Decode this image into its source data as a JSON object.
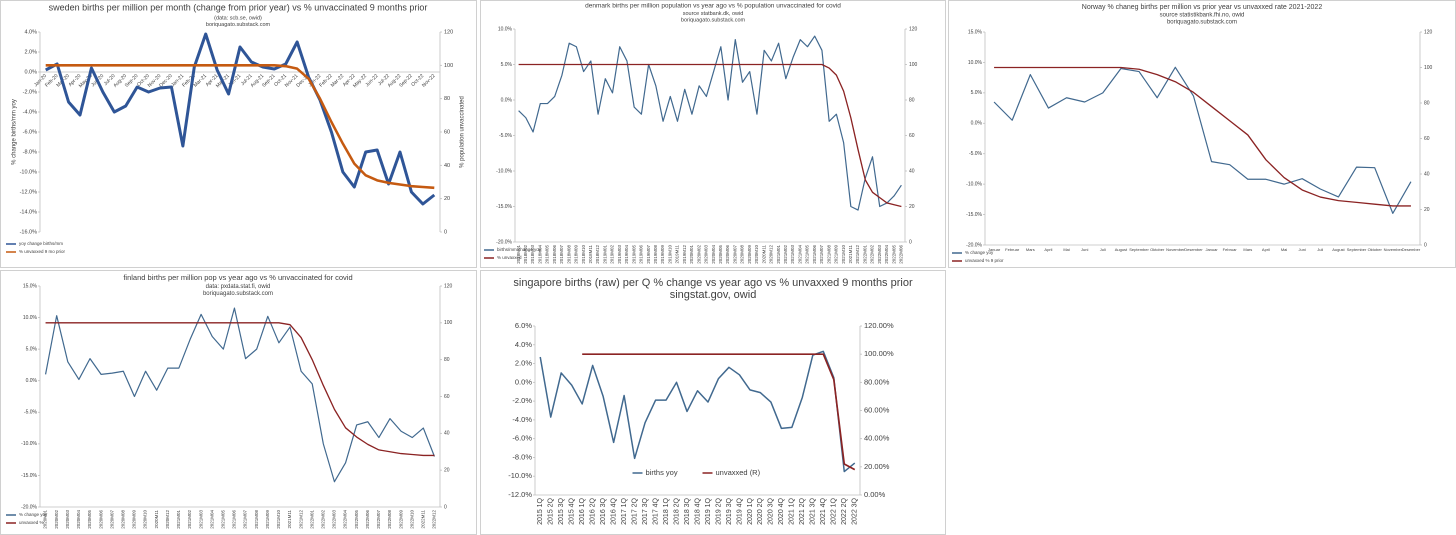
{
  "chart_data": [
    {
      "type": "line",
      "title": "sweden births per million per month (change from prior year) vs % unvaccinated 9 months prior",
      "subtitle": "(data: scb.se, owid)",
      "credit": "boriquagato.substack.com",
      "y_label": "% change births/mm yoy",
      "y2_label": "% population unvaccinated",
      "categories": [
        "Jan-20",
        "Feb-20",
        "Mar-20",
        "Apr-20",
        "May-20",
        "Jun-20",
        "Jul-20",
        "Aug-20",
        "Sep-20",
        "Oct-20",
        "Nov-20",
        "Dec-20",
        "Jan-21",
        "Feb-21",
        "Mar-21",
        "Apr-21",
        "May-21",
        "Jun-21",
        "Jul-21",
        "Aug-21",
        "Sep-21",
        "Oct-21",
        "Nov-21",
        "Dec-21",
        "Jan-22",
        "Feb-22",
        "Mar-22",
        "Apr-22",
        "May-22",
        "Jun-22",
        "Jul-22",
        "Aug-22",
        "Sep-22",
        "Oct-22",
        "Nov-22"
      ],
      "series": [
        {
          "name": "yoy change births/mm",
          "color": "#2f5597",
          "values": [
            0.2,
            0.8,
            -3.0,
            -4.3,
            0.4,
            -2.0,
            -4.0,
            -3.4,
            -1.5,
            -2.0,
            -1.6,
            -1.5,
            -7.4,
            0.5,
            3.8,
            0.2,
            -2.2,
            2.5,
            1.0,
            0.5,
            0.3,
            0.8,
            3.0,
            -0.5,
            -2.8,
            -6.0,
            -10.0,
            -11.5,
            -8.0,
            -7.8,
            -11.2,
            -8.0,
            -12.0,
            -13.2,
            -12.3
          ]
        },
        {
          "name": "% unvaxxed 9 mo prior",
          "color": "#c55a11",
          "axis": "y2",
          "values": [
            100,
            100,
            100,
            100,
            100,
            100,
            100,
            100,
            100,
            100,
            100,
            100,
            100,
            100,
            100,
            100,
            100,
            100,
            100,
            100,
            100,
            99.5,
            98,
            92,
            80,
            66,
            53,
            41,
            34,
            31,
            29.5,
            28.5,
            27.5,
            27,
            26.5
          ]
        }
      ],
      "ylim": [
        -16,
        4
      ],
      "yticks": [
        {
          "value": 4,
          "label": "4.0%"
        },
        {
          "value": 2,
          "label": "2.0%"
        },
        {
          "value": 0,
          "label": "0.0%"
        },
        {
          "value": -2,
          "label": "-2.0%"
        },
        {
          "value": -4,
          "label": "-4.0%"
        },
        {
          "value": -6,
          "label": "-6.0%"
        },
        {
          "value": -8,
          "label": "-8.0%"
        },
        {
          "value": -10,
          "label": "-10.0%"
        },
        {
          "value": -12,
          "label": "-12.0%"
        },
        {
          "value": -14,
          "label": "-14.0%"
        },
        {
          "value": -16,
          "label": "-16.0%"
        }
      ],
      "y2lim": [
        0,
        120
      ],
      "y2ticks": [
        0,
        20,
        40,
        60,
        80,
        100,
        120
      ]
    },
    {
      "type": "line",
      "title": "denmark births per million population vs year ago vs % population unvaccinated for covid",
      "subtitle": "source statbank.dk, owid",
      "credit": "boriquagato.substack.com",
      "categories": [
        "2018M01",
        "2018M02",
        "2018M03",
        "2018M04",
        "2018M05",
        "2018M06",
        "2018M07",
        "2018M08",
        "2018M09",
        "2018M10",
        "2018M11",
        "2018M12",
        "2019M01",
        "2019M02",
        "2019M03",
        "2019M04",
        "2019M05",
        "2019M06",
        "2019M07",
        "2019M08",
        "2019M09",
        "2019M10",
        "2019M11",
        "2019M12",
        "2020M01",
        "2020M02",
        "2020M03",
        "2020M04",
        "2020M05",
        "2020M06",
        "2020M07",
        "2020M08",
        "2020M09",
        "2020M10",
        "2020M11",
        "2020M12",
        "2021M01",
        "2021M02",
        "2021M03",
        "2021M04",
        "2021M05",
        "2021M06",
        "2021M07",
        "2021M08",
        "2021M09",
        "2021M10",
        "2021M11",
        "2021M12",
        "2022M01",
        "2022M02",
        "2022M03",
        "2022M04",
        "2022M05",
        "2022M06"
      ],
      "series": [
        {
          "name": "births/mm change yoy",
          "color": "#41698f",
          "values": [
            -1.5,
            -2.5,
            -4.5,
            -0.5,
            -0.5,
            0.5,
            3.5,
            8.0,
            7.5,
            4.0,
            5.5,
            -2.0,
            3.0,
            1.0,
            7.5,
            5.5,
            -1.0,
            -2.0,
            5.0,
            2.0,
            -3.0,
            0.5,
            -3.0,
            1.5,
            -2.0,
            2.0,
            0.5,
            4.0,
            7.5,
            0.0,
            8.5,
            2.5,
            4.0,
            -2.0,
            7.0,
            5.5,
            8.0,
            3.0,
            6.0,
            8.5,
            7.5,
            9.0,
            7.0,
            -3.0,
            -2.0,
            -6.0,
            -15.0,
            -15.5,
            -11.0,
            -8.0,
            -15.0,
            -14.5,
            -13.5,
            -12.0
          ]
        },
        {
          "name": "% unvaxxed",
          "color": "#8b2323",
          "axis": "y2",
          "values": [
            100,
            100,
            100,
            100,
            100,
            100,
            100,
            100,
            100,
            100,
            100,
            100,
            100,
            100,
            100,
            100,
            100,
            100,
            100,
            100,
            100,
            100,
            100,
            100,
            100,
            100,
            100,
            100,
            100,
            100,
            100,
            100,
            100,
            100,
            100,
            100,
            100,
            100,
            100,
            100,
            100,
            100,
            100,
            98,
            94,
            85,
            70,
            52,
            35,
            28,
            25,
            22,
            21,
            20
          ]
        }
      ],
      "ylim": [
        -20,
        10
      ],
      "yticks": [
        {
          "value": 10,
          "label": "10.0%"
        },
        {
          "value": 5,
          "label": "5.0%"
        },
        {
          "value": 0,
          "label": "0.0%"
        },
        {
          "value": -5,
          "label": "-5.0%"
        },
        {
          "value": -10,
          "label": "-10.0%"
        },
        {
          "value": -15,
          "label": "-15.0%"
        },
        {
          "value": -20,
          "label": "-20.0%"
        }
      ],
      "y2lim": [
        0,
        120
      ],
      "y2ticks": [
        0,
        20,
        40,
        60,
        80,
        100,
        120
      ]
    },
    {
      "type": "line",
      "title": "Norway % chaneg births per million vs prior year vs unvaxxed rate 2021-2022",
      "subtitle": "source statistikbank.fhi.no, owid",
      "credit": "boriquagato.substack.com",
      "categories": [
        "Januar",
        "Februar",
        "Mars",
        "April",
        "Mai",
        "Juni",
        "Juli",
        "August",
        "September",
        "Oktober",
        "November",
        "Desember",
        "Januar",
        "Februar",
        "Mars",
        "April",
        "Mai",
        "Juni",
        "Juli",
        "August",
        "September",
        "Oktober",
        "November",
        "Desember"
      ],
      "series": [
        {
          "name": "% change yoy",
          "color": "#41698f",
          "values": [
            3.5,
            0.5,
            8.0,
            2.5,
            4.2,
            3.5,
            5.0,
            9.0,
            8.5,
            4.2,
            9.2,
            4.5,
            -6.3,
            -6.8,
            -9.2,
            -9.2,
            -10.0,
            -9.1,
            -10.8,
            -12.1,
            -7.2,
            -7.3,
            -14.8,
            -9.6
          ]
        },
        {
          "name": "unvaxxed % 9 prior",
          "color": "#8b2323",
          "axis": "y2",
          "values": [
            100,
            100,
            100,
            100,
            100,
            100,
            100,
            100,
            99,
            96,
            92,
            86,
            78,
            70,
            62,
            48,
            38,
            31,
            27,
            25,
            24,
            23,
            22,
            22
          ]
        }
      ],
      "ylim": [
        -20,
        15
      ],
      "yticks": [
        {
          "value": 15,
          "label": "15.0%"
        },
        {
          "value": 10,
          "label": "10.0%"
        },
        {
          "value": 5,
          "label": "5.0%"
        },
        {
          "value": 0,
          "label": "0.0%"
        },
        {
          "value": -5,
          "label": "-5.0%"
        },
        {
          "value": -10,
          "label": "-10.0%"
        },
        {
          "value": -15,
          "label": "-15.0%"
        },
        {
          "value": -20,
          "label": "-20.0%"
        }
      ],
      "y2lim": [
        0,
        120
      ],
      "y2ticks": [
        0,
        20,
        40,
        60,
        80,
        100,
        120
      ]
    },
    {
      "type": "line",
      "title": "finland births per million pop vs year ago vs % unvaccinated for covid",
      "subtitle": "data: pxdata.stat.fi, owid",
      "credit": "boriquagato.substack.com",
      "categories": [
        "2020M01",
        "2020M02",
        "2020M03",
        "2020M04",
        "2020M05",
        "2020M06",
        "2020M07",
        "2020M08",
        "2020M09",
        "2020M10",
        "2020M11",
        "2020M12",
        "2021M01",
        "2021M02",
        "2021M03",
        "2021M04",
        "2021M05",
        "2021M06",
        "2021M07",
        "2021M08",
        "2021M09",
        "2021M10",
        "2021M11",
        "2021M12",
        "2022M01",
        "2022M02",
        "2022M03",
        "2022M04",
        "2022M05",
        "2022M06",
        "2022M07",
        "2022M08",
        "2022M09",
        "2022M10",
        "2022M11",
        "2022M12"
      ],
      "series": [
        {
          "name": "% change yoy",
          "color": "#41698f",
          "values": [
            1.0,
            10.3,
            3.0,
            0.2,
            3.5,
            1.0,
            1.2,
            1.5,
            -2.5,
            1.5,
            -1.5,
            2.0,
            2.0,
            6.5,
            10.5,
            7.0,
            5.0,
            11.5,
            3.5,
            5.0,
            10.2,
            6.0,
            8.5,
            1.5,
            -0.5,
            -10.0,
            -16.0,
            -13.0,
            -7.0,
            -6.5,
            -9.0,
            -6.0,
            -8.0,
            -9.0,
            -7.5,
            -12.0
          ]
        },
        {
          "name": "unvaxxed %",
          "color": "#8b2323",
          "axis": "y2",
          "values": [
            100,
            100,
            100,
            100,
            100,
            100,
            100,
            100,
            100,
            100,
            100,
            100,
            100,
            100,
            100,
            100,
            100,
            100,
            100,
            100,
            100,
            100,
            99,
            92,
            80,
            66,
            53,
            43,
            38,
            34,
            31,
            30,
            29,
            28.5,
            28,
            28
          ]
        }
      ],
      "ylim": [
        -20,
        15
      ],
      "yticks": [
        {
          "value": 15,
          "label": "15.0%"
        },
        {
          "value": 10,
          "label": "10.0%"
        },
        {
          "value": 5,
          "label": "5.0%"
        },
        {
          "value": 0,
          "label": "0.0%"
        },
        {
          "value": -5,
          "label": "-5.0%"
        },
        {
          "value": -10,
          "label": "-10.0%"
        },
        {
          "value": -15,
          "label": "-15.0%"
        },
        {
          "value": -20,
          "label": "-20.0%"
        }
      ],
      "y2lim": [
        0,
        120
      ],
      "y2ticks": [
        0,
        20,
        40,
        60,
        80,
        100,
        120
      ]
    },
    {
      "type": "line",
      "title": "singapore births (raw) per Q % change vs year ago vs % unvaxxed 9 months prior",
      "subtitle": "singstat.gov, owid",
      "categories": [
        "2015 1Q",
        "2015 2Q",
        "2015 3Q",
        "2015 4Q",
        "2016 1Q",
        "2016 2Q",
        "2016 3Q",
        "2016 4Q",
        "2017 1Q",
        "2017 2Q",
        "2017 3Q",
        "2017 4Q",
        "2018 1Q",
        "2018 2Q",
        "2018 3Q",
        "2018 4Q",
        "2019 1Q",
        "2019 2Q",
        "2019 3Q",
        "2019 4Q",
        "2020 1Q",
        "2020 2Q",
        "2020 3Q",
        "2020 4Q",
        "2021 1Q",
        "2021 2Q",
        "2021 3Q",
        "2021 4Q",
        "2022 1Q",
        "2022 2Q",
        "2022 3Q"
      ],
      "series": [
        {
          "name": "births yoy",
          "color": "#41698f",
          "values": [
            2.7,
            -3.7,
            1.0,
            -0.3,
            -2.3,
            1.8,
            -1.5,
            -6.4,
            -1.4,
            -8.1,
            -4.3,
            -1.9,
            -1.9,
            0.0,
            -3.1,
            -0.9,
            -2.1,
            0.4,
            1.6,
            0.8,
            -0.8,
            -1.1,
            -2.1,
            -4.9,
            -4.8,
            -1.6,
            2.9,
            3.3,
            0.5,
            -9.5,
            -8.6
          ]
        },
        {
          "name": "unvaxxed (R)",
          "color": "#8b2323",
          "axis": "y2",
          "values": [
            null,
            null,
            null,
            null,
            100,
            100,
            100,
            100,
            100,
            100,
            100,
            100,
            100,
            100,
            100,
            100,
            100,
            100,
            100,
            100,
            100,
            100,
            100,
            100,
            100,
            100,
            100,
            100,
            82,
            22,
            18
          ]
        }
      ],
      "ylim": [
        -12,
        6
      ],
      "yticks": [
        {
          "value": 6,
          "label": "6.0%"
        },
        {
          "value": 4,
          "label": "4.0%"
        },
        {
          "value": 2,
          "label": "2.0%"
        },
        {
          "value": 0,
          "label": "0.0%"
        },
        {
          "value": -2,
          "label": "-2.0%"
        },
        {
          "value": -4,
          "label": "-4.0%"
        },
        {
          "value": -6,
          "label": "-6.0%"
        },
        {
          "value": -8,
          "label": "-8.0%"
        },
        {
          "value": -10,
          "label": "-10.0%"
        },
        {
          "value": -12,
          "label": "-12.0%"
        }
      ],
      "y2lim": [
        0,
        120
      ],
      "y2ticks": [
        {
          "value": 0,
          "label": "0.00%"
        },
        {
          "value": 20,
          "label": "20.00%"
        },
        {
          "value": 40,
          "label": "40.00%"
        },
        {
          "value": 60,
          "label": "60.00%"
        },
        {
          "value": 80,
          "label": "80.00%"
        },
        {
          "value": 100,
          "label": "100.00%"
        },
        {
          "value": 120,
          "label": "120.00%"
        }
      ]
    }
  ]
}
